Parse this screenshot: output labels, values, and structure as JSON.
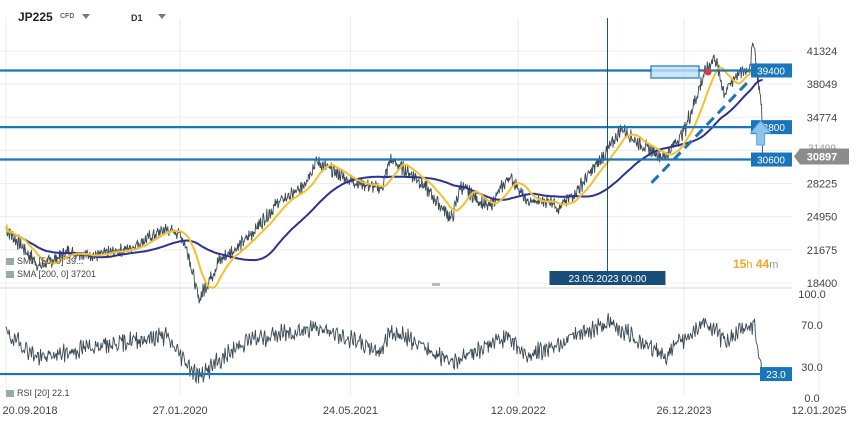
{
  "header": {
    "symbol": "JP225",
    "instrument_type": "CFD",
    "timeframe": "D1"
  },
  "legend": {
    "sma1": "SMA [50, 0] 39...",
    "sma2": "SMA [200, 0] 37201",
    "rsi": "RSI [20] 22.1"
  },
  "countdown": {
    "hours": "15",
    "h_unit": "h",
    "minutes": "44",
    "m_unit": "m"
  },
  "colors": {
    "price": "#3b4a55",
    "sma50": "#f2c12e",
    "sma200": "#2e3192",
    "level": "#1a75bb",
    "crosshair": "#1a4e7a",
    "arrow": "#8ec3ee",
    "price_tag": "#8c8c8c",
    "rsi": "#3b4a55",
    "grid": "#ececec"
  },
  "chart_data": [
    {
      "type": "line",
      "title": "",
      "price_axis_ticks": [
        41324,
        38049,
        34774,
        31499,
        28225,
        24950,
        21675,
        18400
      ],
      "ylim": [
        18400,
        42800
      ],
      "x_ticks": [
        "20.09.2018",
        "27.01.2020",
        "24.05.2021",
        "12.09.2022",
        "26.12.2023",
        "12.01.2025"
      ],
      "crosshair_date": "23.05.2023 00:00",
      "horizontal_levels": [
        39400,
        33800,
        30600
      ],
      "last_price": 30897,
      "series": [
        {
          "name": "price",
          "x": [
            "2018-09-20",
            "2018-12-25",
            "2019-03-15",
            "2019-06-01",
            "2019-09-01",
            "2019-12-15",
            "2020-01-27",
            "2020-02-20",
            "2020-03-19",
            "2020-05-15",
            "2020-08-01",
            "2020-11-01",
            "2021-01-01",
            "2021-02-16",
            "2021-05-24",
            "2021-08-20",
            "2021-09-14",
            "2021-12-01",
            "2022-03-08",
            "2022-04-01",
            "2022-06-20",
            "2022-08-17",
            "2022-09-12",
            "2022-10-03",
            "2022-12-20",
            "2023-01-04",
            "2023-03-01",
            "2023-05-23",
            "2023-07-03",
            "2023-08-15",
            "2023-10-31",
            "2023-12-26",
            "2024-02-22",
            "2024-03-22",
            "2024-04-19",
            "2024-05-20",
            "2024-06-28",
            "2024-07-11",
            "2024-07-25",
            "2024-08-02",
            "2024-08-05"
          ],
          "values": [
            23800,
            20000,
            21500,
            21100,
            21800,
            23700,
            23300,
            21300,
            16700,
            20500,
            22700,
            26400,
            27600,
            30400,
            28500,
            27700,
            30600,
            28700,
            24700,
            28000,
            25800,
            28900,
            27900,
            26400,
            26500,
            25700,
            27700,
            31500,
            33700,
            32300,
            30800,
            33400,
            39100,
            40800,
            37100,
            38900,
            39600,
            42400,
            37900,
            35900,
            30897
          ]
        },
        {
          "name": "SMA [50, 0]",
          "values_note": ""
        },
        {
          "name": "SMA [200, 0]"
        }
      ]
    },
    {
      "type": "line",
      "title": "",
      "ylim": [
        0,
        100
      ],
      "y_ticks": [
        100.0,
        70.0,
        30.0,
        0.0
      ],
      "horizontal_levels": [
        23.0
      ],
      "series": [
        {
          "name": "RSI [20]",
          "x": [
            "2018-09-20",
            "2018-12-25",
            "2019-06-01",
            "2019-12-15",
            "2020-03-19",
            "2020-08-01",
            "2021-02-16",
            "2021-08-20",
            "2021-09-14",
            "2022-03-08",
            "2022-08-17",
            "2022-10-03",
            "2023-05-23",
            "2023-07-03",
            "2023-10-31",
            "2024-02-22",
            "2024-04-19",
            "2024-07-11",
            "2024-08-05"
          ],
          "values": [
            62,
            38,
            50,
            60,
            20,
            55,
            68,
            45,
            65,
            35,
            60,
            40,
            72,
            66,
            40,
            74,
            55,
            72,
            22.1
          ]
        }
      ]
    }
  ]
}
